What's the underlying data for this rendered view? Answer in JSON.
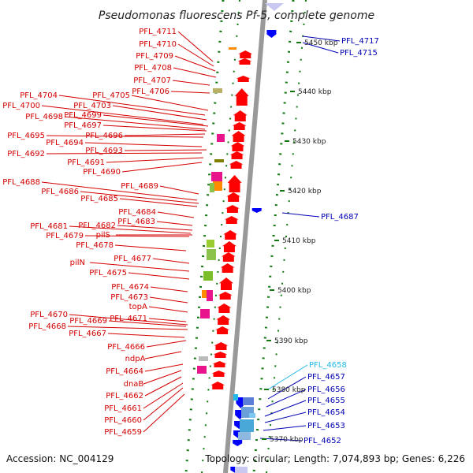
{
  "title": "Pseudomonas fluorescens Pf-5, complete genome",
  "footer": {
    "accession": "Accession: NC_004129",
    "topology": "Topology: circular; Length: 7,074,893 bp; Genes: 6,226"
  },
  "scale_ticks": [
    "5450 kbp",
    "5440 kbp",
    "5430 kbp",
    "5420 kbp",
    "5410 kbp",
    "5400 kbp",
    "5390 kbp",
    "5380 kbp",
    "5370 kbp"
  ],
  "left_labels": [
    "PFL_4711",
    "PFL_4710",
    "PFL_4709",
    "PFL_4708",
    "PFL_4707",
    "PFL_4706",
    "PFL_4705",
    "PFL_4704",
    "PFL_4703",
    "PFL_4700",
    "PFL_4699",
    "PFL_4698",
    "PFL_4697",
    "PFL_4696",
    "PFL_4695",
    "PFL_4694",
    "PFL_4693",
    "PFL_4692",
    "PFL_4691",
    "PFL_4690",
    "PFL_4689",
    "PFL_4688",
    "PFL_4686",
    "PFL_4685",
    "PFL_4684",
    "PFL_4683",
    "PFL_4682",
    "PFL_4681",
    "PFL_4679",
    "pilS",
    "PFL_4678",
    "PFL_4677",
    "pilN",
    "PFL_4675",
    "PFL_4674",
    "PFL_4673",
    "topA",
    "PFL_4671",
    "PFL_4670",
    "PFL_4669",
    "PFL_4668",
    "PFL_4667",
    "PFL_4666",
    "ndpA",
    "PFL_4664",
    "dnaB",
    "PFL_4662",
    "PFL_4661",
    "PFL_4660",
    "PFL_4659"
  ],
  "right_labels": [
    "PFL_4717",
    "PFL_4715",
    "PFL_4687",
    "PFL_4658",
    "PFL_4657",
    "PFL_4656",
    "PFL_4655",
    "PFL_4654",
    "PFL_4653",
    "PFL_4652"
  ],
  "colors": {
    "forward_gene": "#ff0000",
    "reverse_gene": "#0000ff",
    "backbone": "#999999",
    "gc_dots": "#117711",
    "left_label": "#d40000",
    "right_label": "#0000b4",
    "highlight_label": "#22b8e8"
  }
}
